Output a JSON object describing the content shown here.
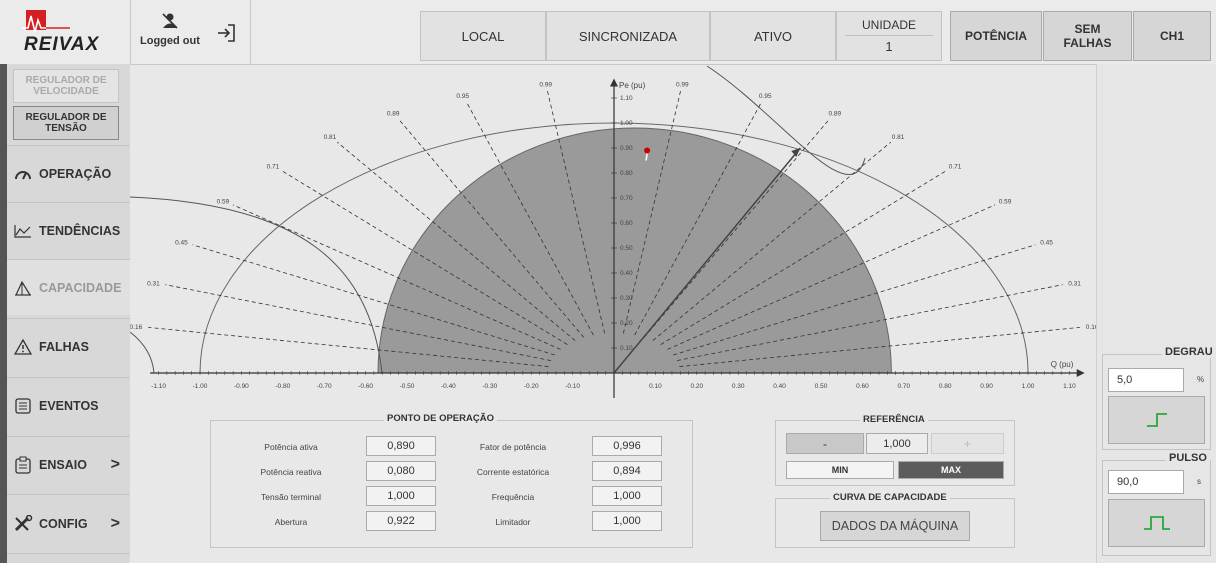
{
  "header": {
    "brand": "REIVAX",
    "user_status": "Logged out",
    "boxes": [
      "LOCAL",
      "SINCRONIZADA",
      "ATIVO"
    ],
    "unidade_label": "UNIDADE",
    "unidade_value": "1",
    "buttons": [
      "POTÊNCIA",
      "SEM FALHAS",
      "CH1"
    ]
  },
  "nav": {
    "reg_velocidade": "REGULADOR DE VELOCIDADE",
    "reg_tensao": "REGULADOR DE TENSÃO",
    "items": [
      {
        "label": "OPERAÇÃO",
        "icon": "gauge-icon"
      },
      {
        "label": "TENDÊNCIAS",
        "icon": "trend-icon"
      },
      {
        "label": "CAPACIDADE",
        "icon": "capacity-icon"
      },
      {
        "label": "FALHAS",
        "icon": "warning-icon"
      },
      {
        "label": "EVENTOS",
        "icon": "list-icon"
      },
      {
        "label": "ENSAIO",
        "icon": "clipboard-icon"
      },
      {
        "label": "CONFIG",
        "icon": "tools-icon"
      }
    ],
    "arrow": ">"
  },
  "chart_data": {
    "type": "scatter",
    "title": "",
    "xlabel": "Q (pu)",
    "ylabel": "Pe (pu)",
    "xlim": [
      -1.1,
      1.1
    ],
    "ylim": [
      0,
      1.1
    ],
    "x_ticks": [
      "-1.10",
      "-1.00",
      "-0.90",
      "-0.80",
      "-0.70",
      "-0.60",
      "-0.50",
      "-0.40",
      "-0.30",
      "-0.20",
      "-0.10",
      "0.10",
      "0.20",
      "0.30",
      "0.40",
      "0.50",
      "0.60",
      "0.70",
      "0.80",
      "0.90",
      "1.00",
      "1.10"
    ],
    "y_ticks": [
      "0.10",
      "0.20",
      "0.30",
      "0.40",
      "0.50",
      "0.60",
      "0.70",
      "0.80",
      "0.90",
      "1.00",
      "1.10"
    ],
    "power_factor_lines": [
      "0.16",
      "0.31",
      "0.45",
      "0.59",
      "0.71",
      "0.81",
      "0.89",
      "0.95",
      "0.99"
    ],
    "capability_region": {
      "q_min": -0.57,
      "q_max": 0.67,
      "p_max": 0.98
    },
    "operating_point": {
      "q": 0.08,
      "p": 0.89,
      "color": "#cc0000"
    },
    "rated_vector": {
      "q": 0.45,
      "p": 0.9
    },
    "region_color": "#9a9a9a"
  },
  "ponto": {
    "title": "PONTO DE OPERAÇÃO",
    "left": [
      {
        "label": "Potência ativa",
        "value": "0,890"
      },
      {
        "label": "Potência reativa",
        "value": "0,080"
      },
      {
        "label": "Tensão terminal",
        "value": "1,000"
      },
      {
        "label": "Abertura",
        "value": "0,922"
      }
    ],
    "right": [
      {
        "label": "Fator de potência",
        "value": "0,996"
      },
      {
        "label": "Corrente estatórica",
        "value": "0,894"
      },
      {
        "label": "Frequência",
        "value": "1,000"
      },
      {
        "label": "Limitador",
        "value": "1,000"
      }
    ]
  },
  "referencia": {
    "title": "REFERÊNCIA",
    "minus": "-",
    "value": "1,000",
    "plus": "+",
    "min": "MIN",
    "max": "MAX"
  },
  "curva": {
    "title": "CURVA DE CAPACIDADE",
    "button": "DADOS DA MÁQUINA"
  },
  "degrau": {
    "title": "DEGRAU",
    "value": "5,0",
    "unit": "%"
  },
  "pulso": {
    "title": "PULSO",
    "value": "90,0",
    "unit": "s"
  }
}
